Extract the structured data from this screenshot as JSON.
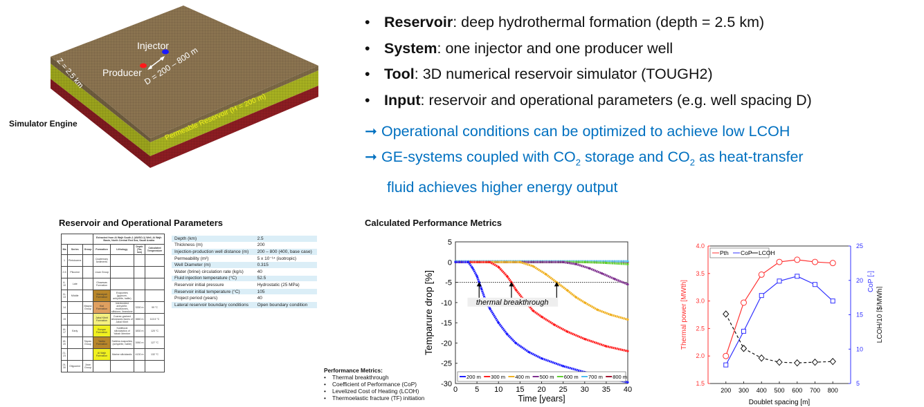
{
  "model": {
    "caption": "Simulator Engine",
    "injector_label": "Injector",
    "producer_label": "Producer",
    "depth_label": "Z = 2.5 km",
    "spacing_label": "D = 200 – 800 m",
    "reservoir_label": "Permeable Reservoir (H = 200 m)",
    "colors": {
      "top": "#8a7350",
      "green": "#a6b020",
      "red": "#8c1d22"
    }
  },
  "bullets": [
    {
      "bold": "Reservoir",
      "text": ": deep hydrothermal formation (depth = 2.5 km)"
    },
    {
      "bold": "System",
      "text": ": one injector and one producer well"
    },
    {
      "bold": "Tool",
      "text": ": 3D numerical reservoir simulator (TOUGH2)"
    },
    {
      "bold": "Input",
      "text": ": reservoir and operational parameters (e.g. well spacing D)"
    }
  ],
  "conclusions": {
    "arrow": "➞",
    "line1": "Operational conditions can be optimized to achieve low LCOH",
    "line2a": "GE-systems coupled with CO",
    "sub": "2",
    "line2b": " storage and CO",
    "line2c": " as heat-transfer",
    "line3": "fluid achieves higher energy output",
    "color": "#0070c0"
  },
  "params_section": {
    "title": "Reservoir and Operational Parameters",
    "strat": {
      "header": "Extracted from Al Wajh South-1 (AWSO-1) Well, Al Wajh Basin, North Central Red Sea, Saudi Arabia",
      "columns": [
        "Ma",
        "Series",
        "Group",
        "Formation",
        "Lithology",
        "Depth (Tw-low)",
        "Calculated Temperature"
      ],
      "rows": [
        {
          "ma": "1",
          "series": "Pleistocene",
          "formation": "Quaternary sediments"
        },
        {
          "ma": "2-5",
          "series": "Pliocene",
          "formation": "Lisan Group"
        },
        {
          "ma": "6-10",
          "series": "Late",
          "formation": "Ghawwas Formation"
        },
        {
          "ma": "11-13",
          "series": "Middle",
          "formation": "Mansiyah Formation",
          "lith": "Evaporites (gypsum, anhydrite, halite)"
        },
        {
          "ma": "14",
          "group": "Maqna Group",
          "formation": "Kial Formation",
          "lith": "Interbedded anhydrite, mudstones, siltstone, limestone",
          "depth": "3330 m",
          "temp": "99 °C"
        },
        {
          "ma": "15",
          "formation": "Jabal Kibrit Formation",
          "lith": "Coarse-grained siliciclastic facies of Jabal Kibrit",
          "depth": "3660 m",
          "temp": "113.5 °C"
        },
        {
          "ma": "16-17",
          "series": "Early",
          "formation": "Burqan Formation",
          "lith": "Sublittoral siliciclastics of Yabah Member",
          "depth": "3830 m",
          "temp": "120 °C"
        },
        {
          "ma": "18-20",
          "group": "Tayran Group",
          "formation": "Yanbu Formation",
          "lith": "Sabkha evaporites (anhydrite, halite)",
          "depth": "3950 m",
          "temp": "127 °C"
        },
        {
          "ma": "21-23",
          "formation": "Al Wajh Formation",
          "lith": "Marine siliciclastic",
          "depth": "4130 m",
          "temp": "132 °C"
        },
        {
          "ma": "24-30",
          "series": "Oligocene",
          "group": "Jizan Group"
        }
      ]
    },
    "table": [
      [
        "Depth (km)",
        "2.5"
      ],
      [
        "Thickness (m)",
        "200"
      ],
      [
        "Injection-production well distance (m)",
        "200 – 800 (400, base case)"
      ],
      [
        "Permeability (m²)",
        "5 x 10⁻¹⁴ (isotropic)"
      ],
      [
        "Well Diameter (m)",
        "0.315"
      ],
      [
        "Water (brine) circulation rate (kg/s)",
        "40"
      ],
      [
        "Fluid injection temperature (°C)",
        "52.5"
      ],
      [
        "Reservoir initial pressure",
        "Hydrostatic (25 MPa)"
      ],
      [
        "Reservoir initial temperature (°C)",
        "105"
      ],
      [
        "Project period (years)",
        "40"
      ],
      [
        "Lateral reservoir boundary conditions",
        "Open boundary condition"
      ]
    ]
  },
  "metrics_section": {
    "title": "Calculated Performance Metrics",
    "list_title": "Performance Metrics:",
    "items": [
      "Thermal breakthrough",
      "Coefficient of Performance (CoP)",
      "Levelized Cost of Heating (LCOH)",
      "Thermoelastic fracture (TF) initiation"
    ]
  },
  "chart_data": [
    {
      "type": "line",
      "title": "",
      "xlabel": "Time [years]",
      "ylabel": "Temparure drop  [%]",
      "xlim": [
        0,
        40
      ],
      "ylim": [
        -30,
        5
      ],
      "xticks": [
        0,
        5,
        10,
        15,
        20,
        25,
        30,
        35,
        40
      ],
      "yticks": [
        5,
        0,
        -5,
        -10,
        -15,
        -20,
        -25,
        -30
      ],
      "threshold": -5,
      "annotation": "thermal breakthrough",
      "breakthrough_years": [
        5.5,
        13,
        23.5
      ],
      "legend_position": "bottom",
      "series": [
        {
          "name": "200 m",
          "color": "#1f1fff",
          "points": [
            [
              0,
              0
            ],
            [
              3,
              0
            ],
            [
              4,
              -1.5
            ],
            [
              5,
              -3.5
            ],
            [
              5.5,
              -5
            ],
            [
              6,
              -6.5
            ],
            [
              7,
              -9.5
            ],
            [
              8,
              -11.5
            ],
            [
              10,
              -15
            ],
            [
              12,
              -17.8
            ],
            [
              14,
              -20
            ],
            [
              17,
              -22.2
            ],
            [
              20,
              -23.8
            ],
            [
              25,
              -25.7
            ],
            [
              30,
              -27.2
            ],
            [
              35,
              -28.5
            ],
            [
              40,
              -29.7
            ]
          ]
        },
        {
          "name": "300 m",
          "color": "#ff1f1f",
          "points": [
            [
              0,
              0
            ],
            [
              8,
              0
            ],
            [
              10,
              -1.2
            ],
            [
              12,
              -3.5
            ],
            [
              13,
              -5
            ],
            [
              14,
              -6.8
            ],
            [
              16,
              -9.5
            ],
            [
              18,
              -12
            ],
            [
              20,
              -13.5
            ],
            [
              23,
              -15.5
            ],
            [
              26,
              -17.2
            ],
            [
              30,
              -19
            ],
            [
              35,
              -20.8
            ],
            [
              40,
              -22
            ]
          ]
        },
        {
          "name": "400 m",
          "color": "#f0b020",
          "points": [
            [
              0,
              0
            ],
            [
              15,
              0
            ],
            [
              18,
              -1
            ],
            [
              21,
              -3
            ],
            [
              23.5,
              -5
            ],
            [
              26,
              -7
            ],
            [
              28,
              -8.7
            ],
            [
              30,
              -10
            ],
            [
              33,
              -11.8
            ],
            [
              36,
              -13
            ],
            [
              40,
              -14.2
            ]
          ]
        },
        {
          "name": "500 m",
          "color": "#7e2f8e",
          "points": [
            [
              0,
              0
            ],
            [
              25,
              0
            ],
            [
              28,
              -0.5
            ],
            [
              31,
              -1.5
            ],
            [
              34,
              -2.8
            ],
            [
              37,
              -4.2
            ],
            [
              40,
              -5.5
            ]
          ]
        },
        {
          "name": "600 m",
          "color": "#60d030",
          "points": [
            [
              0,
              0
            ],
            [
              30,
              0
            ],
            [
              35,
              -0.2
            ],
            [
              40,
              -0.5
            ]
          ]
        },
        {
          "name": "700 m",
          "color": "#4dbeee",
          "points": [
            [
              0,
              0.2
            ],
            [
              40,
              0.2
            ]
          ]
        },
        {
          "name": "800 m",
          "color": "#a2142f",
          "points": [
            [
              0,
              0
            ],
            [
              40,
              0
            ]
          ]
        }
      ]
    },
    {
      "type": "line",
      "xlabel": "Doublet spacing [m]",
      "ylabel_left": "Thermal power [MWth]",
      "ylabel_right_1": "CoP [-]",
      "ylabel_right_2": "LCOH/10 [$/MWh]",
      "x": [
        200,
        300,
        400,
        500,
        600,
        700,
        800
      ],
      "xticks": [
        200,
        300,
        400,
        500,
        600,
        700,
        800
      ],
      "xlim": [
        100,
        900
      ],
      "ylim_left": [
        1.5,
        4.0
      ],
      "yticks_left": [
        "1.5",
        "2.0",
        "2.5",
        "3.0",
        "3.5",
        "4.0"
      ],
      "ylim_right": [
        5,
        25
      ],
      "yticks_right": [
        "5",
        "10",
        "15",
        "20",
        "25"
      ],
      "legend_position": "top-left",
      "legend": [
        "Pth",
        "CoP",
        "LCOH"
      ],
      "series": [
        {
          "name": "Pth",
          "axis": "left",
          "color": "#ff3030",
          "marker": "circle",
          "values": [
            2.0,
            2.97,
            3.48,
            3.71,
            3.75,
            3.71,
            3.69
          ]
        },
        {
          "name": "CoP",
          "axis": "right",
          "color": "#3030ff",
          "marker": "square",
          "values": [
            7.7,
            12.6,
            17.8,
            19.9,
            20.6,
            19.4,
            17.0
          ]
        },
        {
          "name": "LCOH",
          "axis": "right",
          "color": "#111111",
          "marker": "diamond",
          "dashed": true,
          "values": [
            15.1,
            10.1,
            8.7,
            8.1,
            8.0,
            8.1,
            8.2
          ]
        }
      ]
    }
  ]
}
